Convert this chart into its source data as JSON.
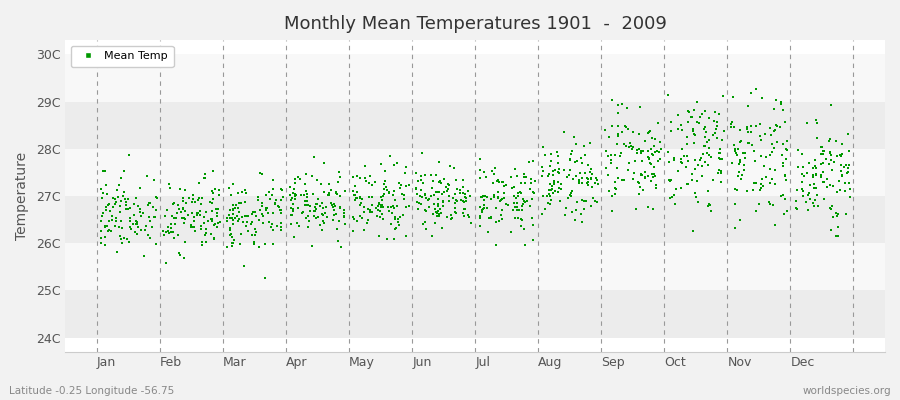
{
  "title": "Monthly Mean Temperatures 1901  -  2009",
  "ylabel": "Temperature",
  "xlabel_labels": [
    "Jan",
    "Feb",
    "Mar",
    "Apr",
    "May",
    "Jun",
    "Jul",
    "Aug",
    "Sep",
    "Oct",
    "Nov",
    "Dec"
  ],
  "ytick_labels": [
    "24C",
    "25C",
    "26C",
    "27C",
    "28C",
    "29C",
    "30C"
  ],
  "ytick_values": [
    24,
    25,
    26,
    27,
    28,
    29,
    30
  ],
  "ylim": [
    23.7,
    30.3
  ],
  "xlim": [
    -0.5,
    12.5
  ],
  "legend_label": "Mean Temp",
  "marker_color": "#009900",
  "marker": "s",
  "marker_size": 4,
  "footnote_left": "Latitude -0.25 Longitude -56.75",
  "footnote_right": "worldspecies.org",
  "bg_color": "#f2f2f2",
  "plot_bg": "#ffffff",
  "band_colors": [
    "#ececec",
    "#f8f8f8"
  ],
  "dashed_line_color": "#999999",
  "num_years": 109,
  "seed": 42,
  "monthly_means": [
    26.55,
    26.45,
    26.5,
    26.7,
    26.75,
    26.85,
    26.85,
    27.1,
    27.5,
    27.7,
    27.65,
    27.2
  ],
  "monthly_stds": [
    0.42,
    0.42,
    0.38,
    0.36,
    0.34,
    0.34,
    0.34,
    0.42,
    0.52,
    0.6,
    0.58,
    0.52
  ],
  "trend_per_year": [
    0.002,
    0.002,
    0.002,
    0.002,
    0.002,
    0.002,
    0.002,
    0.003,
    0.004,
    0.005,
    0.005,
    0.004
  ]
}
